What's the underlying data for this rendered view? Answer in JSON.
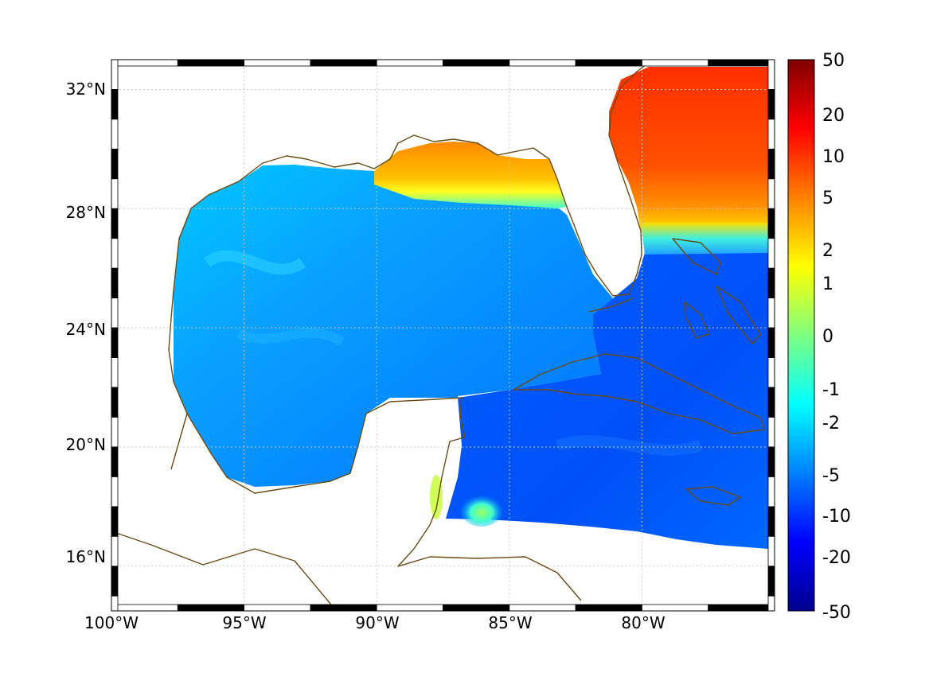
{
  "map": {
    "lon_ticks": [
      "100°W",
      "95°W",
      "90°W",
      "85°W",
      "80°W"
    ],
    "lat_ticks": [
      "32°N",
      "28°N",
      "24°N",
      "20°N",
      "16°N"
    ],
    "colorbar_ticks": [
      "50",
      "20",
      "10",
      "5",
      "2",
      "1",
      "0",
      "-1",
      "-2",
      "-5",
      "-10",
      "-20",
      "-50"
    ],
    "colormap": [
      "#00008f",
      "#0000ff",
      "#0080ff",
      "#00ffff",
      "#80ff80",
      "#ffff00",
      "#ff8000",
      "#ff0000",
      "#800000"
    ],
    "coastline_color": "#6b4a12",
    "grid": true
  },
  "chart_data": {
    "type": "heatmap",
    "title": "",
    "xlabel": "",
    "ylabel": "",
    "x_ticks": [
      "100°W",
      "95°W",
      "90°W",
      "85°W",
      "80°W"
    ],
    "y_ticks": [
      "32°N",
      "28°N",
      "24°N",
      "20°N",
      "16°N"
    ],
    "lon_range": [
      -100,
      -75
    ],
    "lat_range": [
      14.5,
      33
    ],
    "colorbar": {
      "scale": "symmetric-log",
      "ticks": [
        50,
        20,
        10,
        5,
        2,
        1,
        0,
        -1,
        -2,
        -5,
        -10,
        -20,
        -50
      ],
      "range": [
        -50,
        50
      ]
    },
    "regions": [
      {
        "region": "northern Gulf shelf (north of ~28.5°N)",
        "value": 5
      },
      {
        "region": "Atlantic north of ~27.5°N",
        "value": 12
      },
      {
        "region": "central Gulf of Mexico",
        "value": -4
      },
      {
        "region": "Caribbean Sea",
        "value": -8
      },
      {
        "region": "Gulf coastal fringe",
        "value": -2
      }
    ]
  }
}
